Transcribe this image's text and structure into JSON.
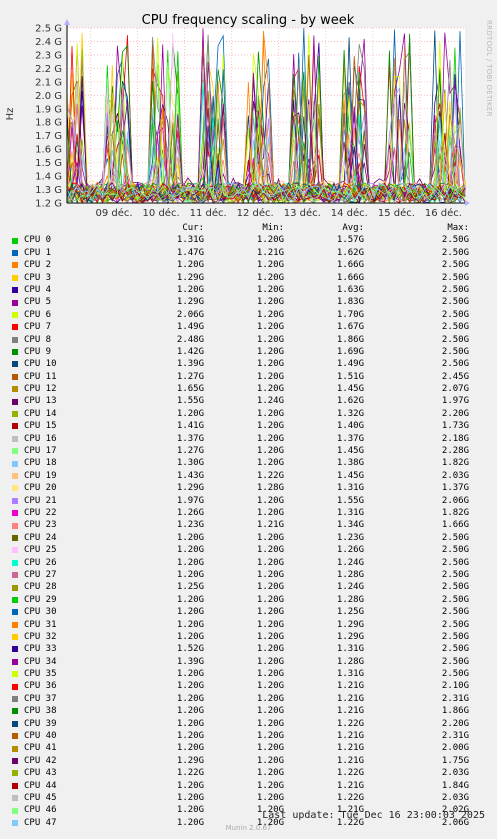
{
  "chart_data": {
    "type": "line",
    "title": "CPU frequency scaling - by week",
    "ylabel": "Hz",
    "xlabel": "",
    "y_ticks": [
      "1.2 G",
      "1.3 G",
      "1.4 G",
      "1.5 G",
      "1.6 G",
      "1.7 G",
      "1.8 G",
      "1.9 G",
      "2.0 G",
      "2.1 G",
      "2.2 G",
      "2.3 G",
      "2.4 G",
      "2.5 G"
    ],
    "ylim": [
      1.2,
      2.5
    ],
    "x_ticks": [
      "09 déc.",
      "10 déc.",
      "11 déc.",
      "12 déc.",
      "13 déc.",
      "14 déc.",
      "15 déc.",
      "16 déc."
    ],
    "xlim": [
      "2025-12-08T12:00",
      "2025-12-16T23:00"
    ],
    "grid": true,
    "legend_position": "below",
    "watermark": "RRDTOOL / TOBI OETIKER",
    "legend_header": {
      "cur": "Cur:",
      "min": "Min:",
      "avg": "Avg:",
      "max": "Max:"
    },
    "series": [
      {
        "name": "CPU 0",
        "color": "#00cc00",
        "cur": "1.31G",
        "min": "1.20G",
        "avg": "1.57G",
        "max": "2.50G"
      },
      {
        "name": "CPU 1",
        "color": "#0066b3",
        "cur": "1.47G",
        "min": "1.21G",
        "avg": "1.62G",
        "max": "2.50G"
      },
      {
        "name": "CPU 2",
        "color": "#ff8000",
        "cur": "1.20G",
        "min": "1.20G",
        "avg": "1.66G",
        "max": "2.50G"
      },
      {
        "name": "CPU 3",
        "color": "#ffcc00",
        "cur": "1.29G",
        "min": "1.20G",
        "avg": "1.66G",
        "max": "2.50G"
      },
      {
        "name": "CPU 4",
        "color": "#330099",
        "cur": "1.20G",
        "min": "1.20G",
        "avg": "1.63G",
        "max": "2.50G"
      },
      {
        "name": "CPU 5",
        "color": "#990099",
        "cur": "1.29G",
        "min": "1.20G",
        "avg": "1.83G",
        "max": "2.50G"
      },
      {
        "name": "CPU 6",
        "color": "#ccff00",
        "cur": "2.06G",
        "min": "1.20G",
        "avg": "1.70G",
        "max": "2.50G"
      },
      {
        "name": "CPU 7",
        "color": "#ff0000",
        "cur": "1.49G",
        "min": "1.20G",
        "avg": "1.67G",
        "max": "2.50G"
      },
      {
        "name": "CPU 8",
        "color": "#808080",
        "cur": "2.48G",
        "min": "1.20G",
        "avg": "1.86G",
        "max": "2.50G"
      },
      {
        "name": "CPU 9",
        "color": "#008f00",
        "cur": "1.42G",
        "min": "1.20G",
        "avg": "1.69G",
        "max": "2.50G"
      },
      {
        "name": "CPU 10",
        "color": "#00487d",
        "cur": "1.39G",
        "min": "1.20G",
        "avg": "1.49G",
        "max": "2.50G"
      },
      {
        "name": "CPU 11",
        "color": "#b35a00",
        "cur": "1.27G",
        "min": "1.20G",
        "avg": "1.51G",
        "max": "2.45G"
      },
      {
        "name": "CPU 12",
        "color": "#b38f00",
        "cur": "1.65G",
        "min": "1.20G",
        "avg": "1.45G",
        "max": "2.07G"
      },
      {
        "name": "CPU 13",
        "color": "#6b006b",
        "cur": "1.55G",
        "min": "1.24G",
        "avg": "1.62G",
        "max": "1.97G"
      },
      {
        "name": "CPU 14",
        "color": "#8fb300",
        "cur": "1.20G",
        "min": "1.20G",
        "avg": "1.32G",
        "max": "2.20G"
      },
      {
        "name": "CPU 15",
        "color": "#b30000",
        "cur": "1.41G",
        "min": "1.20G",
        "avg": "1.40G",
        "max": "1.73G"
      },
      {
        "name": "CPU 16",
        "color": "#bebebe",
        "cur": "1.37G",
        "min": "1.20G",
        "avg": "1.37G",
        "max": "2.18G"
      },
      {
        "name": "CPU 17",
        "color": "#80ff80",
        "cur": "1.27G",
        "min": "1.20G",
        "avg": "1.45G",
        "max": "2.28G"
      },
      {
        "name": "CPU 18",
        "color": "#80c9ff",
        "cur": "1.30G",
        "min": "1.20G",
        "avg": "1.38G",
        "max": "1.82G"
      },
      {
        "name": "CPU 19",
        "color": "#ffc080",
        "cur": "1.43G",
        "min": "1.22G",
        "avg": "1.45G",
        "max": "2.03G"
      },
      {
        "name": "CPU 20",
        "color": "#ffe680",
        "cur": "1.29G",
        "min": "1.28G",
        "avg": "1.31G",
        "max": "1.37G"
      },
      {
        "name": "CPU 21",
        "color": "#aa80ff",
        "cur": "1.97G",
        "min": "1.20G",
        "avg": "1.55G",
        "max": "2.06G"
      },
      {
        "name": "CPU 22",
        "color": "#ee00cc",
        "cur": "1.26G",
        "min": "1.20G",
        "avg": "1.31G",
        "max": "1.82G"
      },
      {
        "name": "CPU 23",
        "color": "#ff8080",
        "cur": "1.23G",
        "min": "1.21G",
        "avg": "1.34G",
        "max": "1.66G"
      },
      {
        "name": "CPU 24",
        "color": "#666600",
        "cur": "1.20G",
        "min": "1.20G",
        "avg": "1.23G",
        "max": "2.50G"
      },
      {
        "name": "CPU 25",
        "color": "#ffbfff",
        "cur": "1.20G",
        "min": "1.20G",
        "avg": "1.26G",
        "max": "2.50G"
      },
      {
        "name": "CPU 26",
        "color": "#00ffcc",
        "cur": "1.20G",
        "min": "1.20G",
        "avg": "1.24G",
        "max": "2.50G"
      },
      {
        "name": "CPU 27",
        "color": "#cc6699",
        "cur": "1.20G",
        "min": "1.20G",
        "avg": "1.28G",
        "max": "2.50G"
      },
      {
        "name": "CPU 28",
        "color": "#999900",
        "cur": "1.25G",
        "min": "1.20G",
        "avg": "1.24G",
        "max": "2.50G"
      },
      {
        "name": "CPU 29",
        "color": "#00cc00",
        "cur": "1.20G",
        "min": "1.20G",
        "avg": "1.28G",
        "max": "2.50G"
      },
      {
        "name": "CPU 30",
        "color": "#0066b3",
        "cur": "1.20G",
        "min": "1.20G",
        "avg": "1.25G",
        "max": "2.50G"
      },
      {
        "name": "CPU 31",
        "color": "#ff8000",
        "cur": "1.20G",
        "min": "1.20G",
        "avg": "1.29G",
        "max": "2.50G"
      },
      {
        "name": "CPU 32",
        "color": "#ffcc00",
        "cur": "1.20G",
        "min": "1.20G",
        "avg": "1.29G",
        "max": "2.50G"
      },
      {
        "name": "CPU 33",
        "color": "#330099",
        "cur": "1.52G",
        "min": "1.20G",
        "avg": "1.31G",
        "max": "2.50G"
      },
      {
        "name": "CPU 34",
        "color": "#990099",
        "cur": "1.39G",
        "min": "1.20G",
        "avg": "1.28G",
        "max": "2.50G"
      },
      {
        "name": "CPU 35",
        "color": "#ccff00",
        "cur": "1.20G",
        "min": "1.20G",
        "avg": "1.31G",
        "max": "2.50G"
      },
      {
        "name": "CPU 36",
        "color": "#ff0000",
        "cur": "1.20G",
        "min": "1.20G",
        "avg": "1.21G",
        "max": "2.10G"
      },
      {
        "name": "CPU 37",
        "color": "#808080",
        "cur": "1.20G",
        "min": "1.20G",
        "avg": "1.21G",
        "max": "2.31G"
      },
      {
        "name": "CPU 38",
        "color": "#008f00",
        "cur": "1.20G",
        "min": "1.20G",
        "avg": "1.21G",
        "max": "1.86G"
      },
      {
        "name": "CPU 39",
        "color": "#00487d",
        "cur": "1.20G",
        "min": "1.20G",
        "avg": "1.22G",
        "max": "2.20G"
      },
      {
        "name": "CPU 40",
        "color": "#b35a00",
        "cur": "1.20G",
        "min": "1.20G",
        "avg": "1.21G",
        "max": "2.31G"
      },
      {
        "name": "CPU 41",
        "color": "#b38f00",
        "cur": "1.20G",
        "min": "1.20G",
        "avg": "1.21G",
        "max": "2.00G"
      },
      {
        "name": "CPU 42",
        "color": "#6b006b",
        "cur": "1.29G",
        "min": "1.20G",
        "avg": "1.21G",
        "max": "1.75G"
      },
      {
        "name": "CPU 43",
        "color": "#8fb300",
        "cur": "1.22G",
        "min": "1.20G",
        "avg": "1.22G",
        "max": "2.03G"
      },
      {
        "name": "CPU 44",
        "color": "#b30000",
        "cur": "1.20G",
        "min": "1.20G",
        "avg": "1.21G",
        "max": "1.84G"
      },
      {
        "name": "CPU 45",
        "color": "#bebebe",
        "cur": "1.20G",
        "min": "1.20G",
        "avg": "1.22G",
        "max": "2.03G"
      },
      {
        "name": "CPU 46",
        "color": "#80ff80",
        "cur": "1.20G",
        "min": "1.20G",
        "avg": "1.21G",
        "max": "2.02G"
      },
      {
        "name": "CPU 47",
        "color": "#80c9ff",
        "cur": "1.20G",
        "min": "1.20G",
        "avg": "1.22G",
        "max": "2.06G"
      }
    ]
  },
  "footer": {
    "last_update": "Last update: Tue Dec 16 23:00:03 2025",
    "generator": "Munin 2.0.67"
  }
}
